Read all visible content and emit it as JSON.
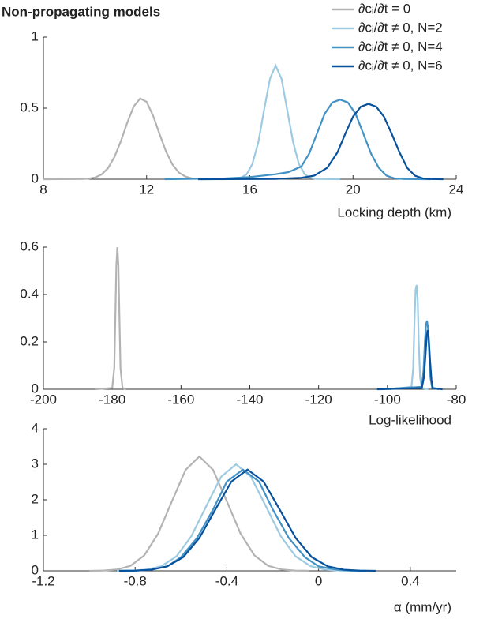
{
  "chart_data": [
    {
      "type": "line",
      "title": "Non-propagating models",
      "xlabel": "Locking depth (km)",
      "xlim": [
        8,
        24
      ],
      "ylim": [
        0,
        1
      ],
      "xticks": [
        8,
        12,
        16,
        20,
        24
      ],
      "yticks": [
        0,
        0.5,
        1
      ],
      "legend": "top-right",
      "series": [
        {
          "name": "∂cᵢ/∂t = 0",
          "color": "#b3b3b3",
          "x": [
            8,
            9.5,
            9.75,
            10,
            10.25,
            10.5,
            10.75,
            11,
            11.25,
            11.5,
            11.75,
            12,
            12.25,
            12.5,
            12.75,
            13,
            13.25,
            13.5,
            13.75,
            14,
            15
          ],
          "values": [
            0,
            0.001,
            0.004,
            0.012,
            0.033,
            0.077,
            0.155,
            0.267,
            0.398,
            0.512,
            0.568,
            0.544,
            0.448,
            0.319,
            0.196,
            0.104,
            0.047,
            0.019,
            0.006,
            0.002,
            0
          ]
        },
        {
          "name": "∂cᵢ/∂t ≠ 0, N=2",
          "color": "#9ecae1",
          "x": [
            14,
            15.43,
            15.65,
            15.88,
            16.1,
            16.33,
            16.55,
            16.78,
            17,
            17.23,
            17.45,
            17.68,
            17.9,
            18.13,
            18.35,
            18.58,
            19.5
          ],
          "values": [
            0,
            0.002,
            0.009,
            0.035,
            0.108,
            0.26,
            0.485,
            0.706,
            0.8,
            0.706,
            0.485,
            0.26,
            0.108,
            0.035,
            0.009,
            0.002,
            0
          ]
        },
        {
          "name": "∂cᵢ/∂t ≠ 0, N=4",
          "color": "#4292c6",
          "x": [
            12.7,
            15,
            16,
            17,
            17.5,
            18,
            18.3,
            18.6,
            18.9,
            19.2,
            19.5,
            19.8,
            20.1,
            20.4,
            20.7,
            21,
            21.3,
            21.6,
            22,
            23
          ],
          "values": [
            0,
            0.005,
            0.015,
            0.035,
            0.05,
            0.09,
            0.18,
            0.32,
            0.46,
            0.54,
            0.56,
            0.54,
            0.46,
            0.32,
            0.18,
            0.08,
            0.025,
            0.006,
            0.001,
            0
          ]
        },
        {
          "name": "∂cᵢ/∂t ≠ 0, N=6",
          "color": "#08519c",
          "x": [
            14,
            17,
            18,
            18.5,
            19,
            19.4,
            19.7,
            20,
            20.3,
            20.6,
            20.9,
            21.2,
            21.5,
            21.8,
            22.1,
            22.4,
            22.7,
            23,
            23.5
          ],
          "values": [
            0,
            0.002,
            0.01,
            0.025,
            0.08,
            0.19,
            0.32,
            0.44,
            0.51,
            0.53,
            0.51,
            0.44,
            0.32,
            0.19,
            0.08,
            0.025,
            0.006,
            0.001,
            0
          ]
        }
      ]
    },
    {
      "type": "line",
      "xlabel": "Log-likelihood",
      "xlim": [
        -200,
        -80
      ],
      "ylim": [
        0,
        0.6
      ],
      "xticks": [
        -200,
        -180,
        -160,
        -140,
        -120,
        -100,
        -80
      ],
      "yticks": [
        0,
        0.2,
        0.4,
        0.6
      ],
      "series": [
        {
          "color": "#b3b3b3",
          "x": [
            -185,
            -180,
            -179.4,
            -179.1,
            -178.8,
            -178.5,
            -178.2,
            -177.9,
            -177.6,
            -177,
            -176
          ],
          "values": [
            0,
            0.005,
            0.09,
            0.3,
            0.52,
            0.6,
            0.52,
            0.3,
            0.09,
            0.005,
            0
          ]
        },
        {
          "color": "#9ecae1",
          "x": [
            -100,
            -93,
            -92.5,
            -92.1,
            -91.8,
            -91.5,
            -91.2,
            -90.9,
            -90.5,
            -90,
            -88
          ],
          "values": [
            0,
            0.01,
            0.09,
            0.3,
            0.42,
            0.44,
            0.38,
            0.2,
            0.05,
            0.005,
            0
          ]
        },
        {
          "color": "#4292c6",
          "x": [
            -102,
            -90,
            -89.5,
            -89.1,
            -88.8,
            -88.5,
            -88.2,
            -87.9,
            -87.5,
            -87,
            -85
          ],
          "values": [
            0,
            0.01,
            0.08,
            0.2,
            0.27,
            0.29,
            0.26,
            0.16,
            0.05,
            0.005,
            0
          ]
        },
        {
          "color": "#08519c",
          "x": [
            -103,
            -90,
            -89.4,
            -89,
            -88.6,
            -88.3,
            -88,
            -87.6,
            -87.2,
            -86.8,
            -84
          ],
          "values": [
            0,
            0.005,
            0.05,
            0.13,
            0.22,
            0.25,
            0.22,
            0.12,
            0.04,
            0.005,
            0
          ]
        }
      ]
    },
    {
      "type": "line",
      "xlabel": "α (mm/yr)",
      "xlim": [
        -1.2,
        0.6
      ],
      "ylim": [
        0,
        4
      ],
      "xticks": [
        -1.2,
        -0.8,
        -0.4,
        0,
        0.4
      ],
      "yticks": [
        0,
        1,
        2,
        3,
        4
      ],
      "series": [
        {
          "color": "#b3b3b3",
          "x": [
            -1.0,
            -0.94,
            -0.88,
            -0.82,
            -0.76,
            -0.7,
            -0.64,
            -0.58,
            -0.52,
            -0.46,
            -0.4,
            -0.34,
            -0.28,
            -0.22,
            -0.16,
            -0.1,
            -0.04
          ],
          "values": [
            0.001,
            0.007,
            0.036,
            0.141,
            0.436,
            1.046,
            1.953,
            2.842,
            3.22,
            2.842,
            1.953,
            1.046,
            0.436,
            0.141,
            0.036,
            0.007,
            0.001
          ]
        },
        {
          "color": "#9ecae1",
          "x": [
            -0.88,
            -0.815,
            -0.75,
            -0.685,
            -0.62,
            -0.555,
            -0.49,
            -0.425,
            -0.36,
            -0.295,
            -0.23,
            -0.165,
            -0.1,
            -0.035,
            0.03,
            0.095,
            0.16
          ],
          "values": [
            0.001,
            0.007,
            0.033,
            0.132,
            0.406,
            0.974,
            1.82,
            2.648,
            3.0,
            2.648,
            1.82,
            0.974,
            0.406,
            0.132,
            0.033,
            0.007,
            0.001
          ]
        },
        {
          "color": "#4292c6",
          "x": [
            -0.87,
            -0.8,
            -0.73,
            -0.66,
            -0.6,
            -0.53,
            -0.46,
            -0.4,
            -0.33,
            -0.26,
            -0.2,
            -0.13,
            -0.06,
            0.0,
            0.08,
            0.14,
            0.21
          ],
          "values": [
            0.001,
            0.006,
            0.032,
            0.125,
            0.386,
            0.925,
            1.729,
            2.515,
            2.85,
            2.515,
            1.729,
            0.925,
            0.386,
            0.125,
            0.032,
            0.006,
            0.001
          ]
        },
        {
          "color": "#08519c",
          "x": [
            -0.87,
            -0.8,
            -0.73,
            -0.66,
            -0.59,
            -0.52,
            -0.45,
            -0.38,
            -0.31,
            -0.24,
            -0.17,
            -0.1,
            -0.03,
            0.04,
            0.11,
            0.18,
            0.25
          ],
          "values": [
            0.001,
            0.006,
            0.032,
            0.125,
            0.386,
            0.925,
            1.729,
            2.515,
            2.85,
            2.515,
            1.729,
            0.925,
            0.386,
            0.125,
            0.032,
            0.006,
            0.001
          ]
        }
      ]
    }
  ]
}
